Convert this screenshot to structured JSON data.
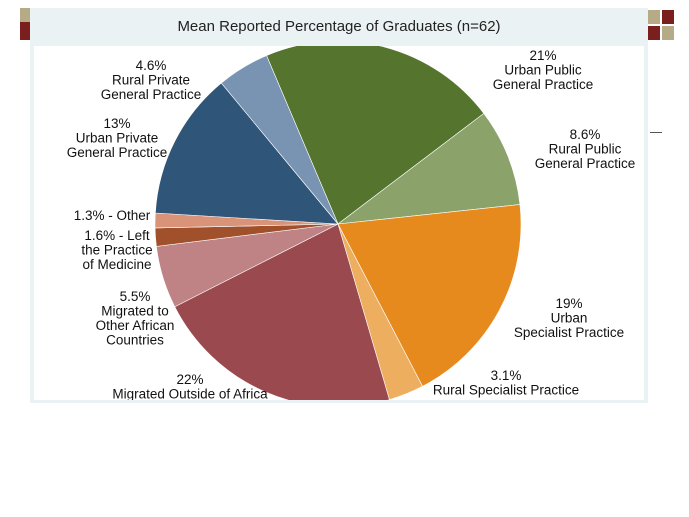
{
  "chart_data": {
    "type": "pie",
    "title": "Mean Reported Percentage of Graduates (n=62)",
    "slices": [
      {
        "label": "Urban Public General Practice",
        "value": 21,
        "value_label": "21%",
        "color": "#55752f"
      },
      {
        "label": "Rural Public General Practice",
        "value": 8.6,
        "value_label": "8.6%",
        "color": "#8ba36b"
      },
      {
        "label": "Urban Specialist Practice",
        "value": 19,
        "value_label": "19%",
        "color": "#e68a1d"
      },
      {
        "label": "Rural Specialist Practice",
        "value": 3.1,
        "value_label": "3.1%",
        "color": "#eeae60"
      },
      {
        "label": "Migrated Outside of Africa",
        "value": 22,
        "value_label": "22%",
        "color": "#9a4a4e"
      },
      {
        "label": "Migrated to Other African Countries",
        "value": 5.5,
        "value_label": "5.5%",
        "color": "#bf8285"
      },
      {
        "label": "Left the Practice of Medicine",
        "value": 1.6,
        "value_label": "1.6% - Left",
        "color": "#a0502a"
      },
      {
        "label": "Other",
        "value": 1.3,
        "value_label": "1.3% - Other",
        "color": "#d99379"
      },
      {
        "label": "Urban Private General Practice",
        "value": 13,
        "value_label": "13%",
        "color": "#2f5578"
      },
      {
        "label": "Rural Private General Practice",
        "value": 4.6,
        "value_label": "4.6%",
        "color": "#7894b2"
      }
    ],
    "label_lines": [
      {
        "key": "urban_public_gp",
        "lines": [
          "21%",
          "Urban Public",
          "General Practice"
        ]
      },
      {
        "key": "rural_public_gp",
        "lines": [
          "8.6%",
          "Rural Public",
          "General Practice"
        ]
      },
      {
        "key": "urban_specialist",
        "lines": [
          "19%",
          "Urban",
          "Specialist Practice"
        ]
      },
      {
        "key": "rural_specialist",
        "lines": [
          "3.1%",
          "Rural Specialist Practice"
        ]
      },
      {
        "key": "migrated_outside",
        "lines": [
          "22%",
          "Migrated Outside of Africa"
        ]
      },
      {
        "key": "migrated_african",
        "lines": [
          "5.5%",
          "Migrated to",
          "Other African",
          "Countries"
        ]
      },
      {
        "key": "left_practice",
        "lines": [
          "1.6% - Left",
          "the Practice",
          "of Medicine"
        ]
      },
      {
        "key": "other",
        "lines": [
          "1.3% - Other"
        ]
      },
      {
        "key": "urban_private_gp",
        "lines": [
          "13%",
          "Urban Private",
          "General Practice"
        ]
      },
      {
        "key": "rural_private_gp",
        "lines": [
          "4.6%",
          "Rural Private",
          "General Practice"
        ]
      }
    ],
    "legend": "none"
  }
}
